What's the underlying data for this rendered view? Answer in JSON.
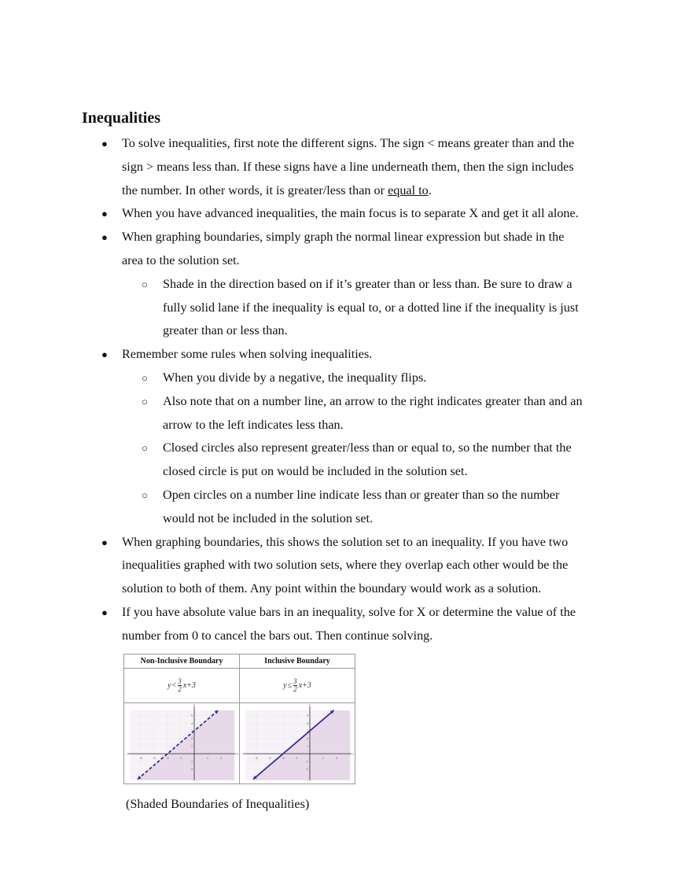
{
  "title": "Inequalities",
  "bullets": [
    {
      "level": 1,
      "lines": [
        [
          "To solve inequalities, first note the different signs. The sign < means greater than and the"
        ],
        [
          "sign > means less than. If these signs have a line underneath them, then the sign includes"
        ],
        [
          "the number. In other words, it is greater/less than or ",
          {
            "u": "equal to"
          },
          "."
        ]
      ]
    },
    {
      "level": 1,
      "lines": [
        [
          "When you have advanced inequalities, the main focus is to separate X and get it all alone."
        ]
      ]
    },
    {
      "level": 1,
      "lines": [
        [
          "When graphing boundaries, simply graph the normal linear expression but shade in the"
        ],
        [
          "area to the solution set."
        ]
      ]
    },
    {
      "level": 2,
      "lines": [
        [
          "Shade in the direction based on if it’s greater than or less than. Be sure to draw a"
        ],
        [
          "fully solid lane if the inequality is equal to, or a dotted line if the inequality is just"
        ],
        [
          "greater than or less than."
        ]
      ]
    },
    {
      "level": 1,
      "lines": [
        [
          "Remember some rules when solving inequalities."
        ]
      ]
    },
    {
      "level": 2,
      "lines": [
        [
          "When you divide by a negative, the inequality flips."
        ]
      ]
    },
    {
      "level": 2,
      "lines": [
        [
          "Also note that on a number line, an arrow to the right indicates greater than and an"
        ],
        [
          "arrow to the left indicates less than."
        ]
      ]
    },
    {
      "level": 2,
      "lines": [
        [
          "Closed circles also represent greater/less than or equal to, so the number that the"
        ],
        [
          "closed circle is put on would be included in the solution set."
        ]
      ]
    },
    {
      "level": 2,
      "lines": [
        [
          "Open circles on a number line indicate less than or greater than so the number"
        ],
        [
          "would not be included in the solution set."
        ]
      ]
    },
    {
      "level": 1,
      "lines": [
        [
          "When graphing boundaries, this shows the solution set to an inequality. If you have two"
        ],
        [
          "inequalities graphed with two solution sets, where they overlap each other would be the"
        ],
        [
          "solution to both of them. Any point within the boundary would work as a solution."
        ]
      ]
    },
    {
      "level": 1,
      "lines": [
        [
          "If you have absolute value bars in an inequality, solve for X or determine the value of the"
        ],
        [
          "number from 0 to cancel the bars out. Then continue solving."
        ]
      ]
    }
  ],
  "figure": {
    "panels": [
      {
        "header": "Non-Inclusive Boundary",
        "lhs": "y",
        "sign": "<",
        "num": "3",
        "den": "2",
        "rhs": "x+3",
        "dashed": true
      },
      {
        "header": "Inclusive Boundary",
        "lhs": "y",
        "sign": "≤",
        "num": "3",
        "den": "2",
        "rhs": "x+3",
        "dashed": false
      }
    ],
    "slope": 1.5,
    "intercept": 3,
    "xlim": [
      -5,
      3
    ],
    "ylim": [
      -3.5,
      6
    ],
    "x_ticks": [
      -4,
      -3,
      -2,
      -1,
      1,
      2
    ],
    "y_ticks": [
      -2,
      -1,
      1,
      2,
      3,
      4,
      5
    ],
    "x_label": "x",
    "y_label": "y",
    "shade_color": "#e8d9ea",
    "line_color": "#3b2f8f"
  },
  "caption": "(Shaded Boundaries of Inequalities)"
}
